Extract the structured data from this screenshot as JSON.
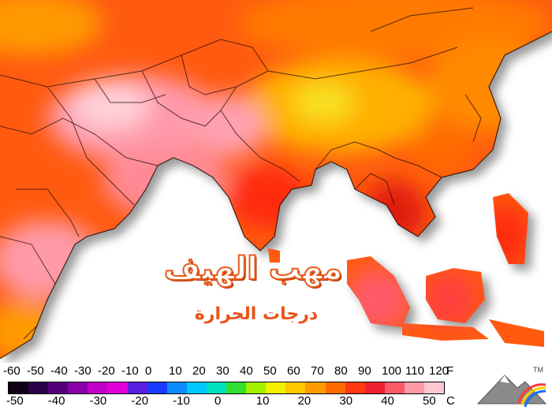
{
  "title": "مهب الهيف",
  "subtitle": "درجات الحرارة",
  "scale": {
    "fahrenheit_ticks": [
      "-60",
      "-50",
      "-40",
      "-30",
      "-20",
      "-10",
      "0",
      "10",
      "20",
      "30",
      "40",
      "50",
      "60",
      "70",
      "80",
      "90",
      "100",
      "110",
      "120"
    ],
    "fahrenheit_unit": "F",
    "celsius_ticks": [
      "-50",
      "-40",
      "-30",
      "-20",
      "-10",
      "0",
      "10",
      "20",
      "30",
      "40",
      "50"
    ],
    "celsius_unit": "C",
    "colors": [
      "#120018",
      "#2c0048",
      "#55007a",
      "#8a00a8",
      "#c000c8",
      "#e000d8",
      "#5a1fe0",
      "#1a3cff",
      "#0a8cff",
      "#00c8ff",
      "#00e0c0",
      "#30e030",
      "#a0f000",
      "#f0f000",
      "#ffc800",
      "#ff9a00",
      "#ff6a00",
      "#ff3a10",
      "#f02030",
      "#f85a6a",
      "#ff9aaa",
      "#ffc8d0"
    ]
  },
  "logo": {
    "mark": "TM"
  }
}
